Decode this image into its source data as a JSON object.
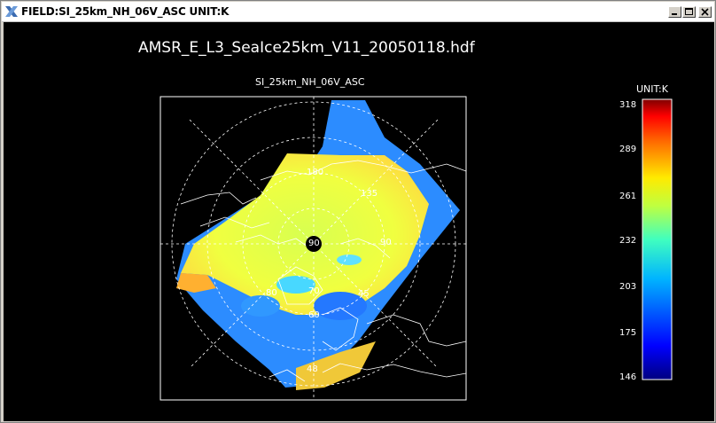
{
  "window": {
    "title": "FIELD:SI_25km_NH_06V_ASC  UNIT:K",
    "buttons": [
      "minimize-icon",
      "maximize-icon",
      "close-icon"
    ]
  },
  "plot": {
    "file_title": "AMSR_E_L3_SeaIce25km_V11_20050118.hdf",
    "map_title": "SI_25km_NH_06V_ASC",
    "lat_labels": [
      "80",
      "70",
      "60",
      "48"
    ],
    "lon_labels": [
      "180",
      "135",
      "90",
      "45"
    ],
    "center_label": "90"
  },
  "colorbar": {
    "unit_label": "UNIT:K",
    "ticks": [
      "318",
      "289",
      "261",
      "232",
      "203",
      "175",
      "146"
    ],
    "min": 146,
    "max": 318
  },
  "colors": {
    "background": "#000000",
    "outline": "#ffffff",
    "grid": "#ffffff"
  }
}
